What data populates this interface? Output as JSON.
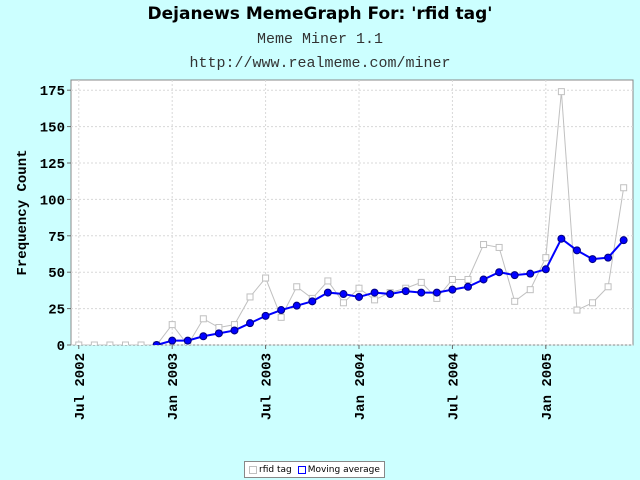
{
  "chart_data": {
    "type": "line",
    "title": "Dejanews MemeGraph For: 'rfid tag'",
    "subtitles": [
      "Meme Miner 1.1",
      "http://www.realmeme.com/miner"
    ],
    "ylabel": "Frequency Count",
    "xlabel": "",
    "ylim": [
      0,
      182
    ],
    "yticks": [
      0,
      25,
      50,
      75,
      100,
      125,
      150,
      175
    ],
    "xtick_labels": [
      "Jul 2002",
      "Jan 2003",
      "Jul 2003",
      "Jan 2004",
      "Jul 2004",
      "Jan 2005"
    ],
    "xtick_month_index": [
      0,
      6,
      12,
      18,
      24,
      30
    ],
    "x_range_months": [
      -0.5,
      35.6
    ],
    "grid": true,
    "legend_position": "bottom-center",
    "series": [
      {
        "name": "rfid tag",
        "color": "#C0C0C0",
        "marker": "square",
        "month_index": [
          -1,
          0,
          1,
          2,
          3,
          4,
          5,
          6,
          7,
          8,
          9,
          10,
          11,
          12,
          13,
          14,
          15,
          16,
          17,
          18,
          19,
          20,
          21,
          22,
          23,
          24,
          25,
          26,
          27,
          28,
          29,
          30,
          31,
          32,
          33,
          34,
          35
        ],
        "values": [
          0,
          0,
          0,
          0,
          0,
          0,
          0,
          14,
          0,
          18,
          12,
          14,
          33,
          46,
          19,
          40,
          32,
          44,
          29,
          39,
          31,
          36,
          39,
          43,
          32,
          45,
          45,
          69,
          67,
          30,
          38,
          60,
          174,
          24,
          29,
          40,
          108
        ]
      },
      {
        "name": "Moving average",
        "color": "#0000FF",
        "marker": "circle",
        "month_index": [
          5,
          6,
          7,
          8,
          9,
          10,
          11,
          12,
          13,
          14,
          15,
          16,
          17,
          18,
          19,
          20,
          21,
          22,
          23,
          24,
          25,
          26,
          27,
          28,
          29,
          30,
          31,
          32,
          33,
          34,
          35
        ],
        "values": [
          0,
          3,
          3,
          6,
          8,
          10,
          15,
          20,
          24,
          27,
          30,
          36,
          35,
          33,
          36,
          35,
          37,
          36,
          36,
          38,
          40,
          45,
          50,
          48,
          49,
          52,
          73,
          65,
          59,
          60,
          72
        ]
      }
    ]
  }
}
